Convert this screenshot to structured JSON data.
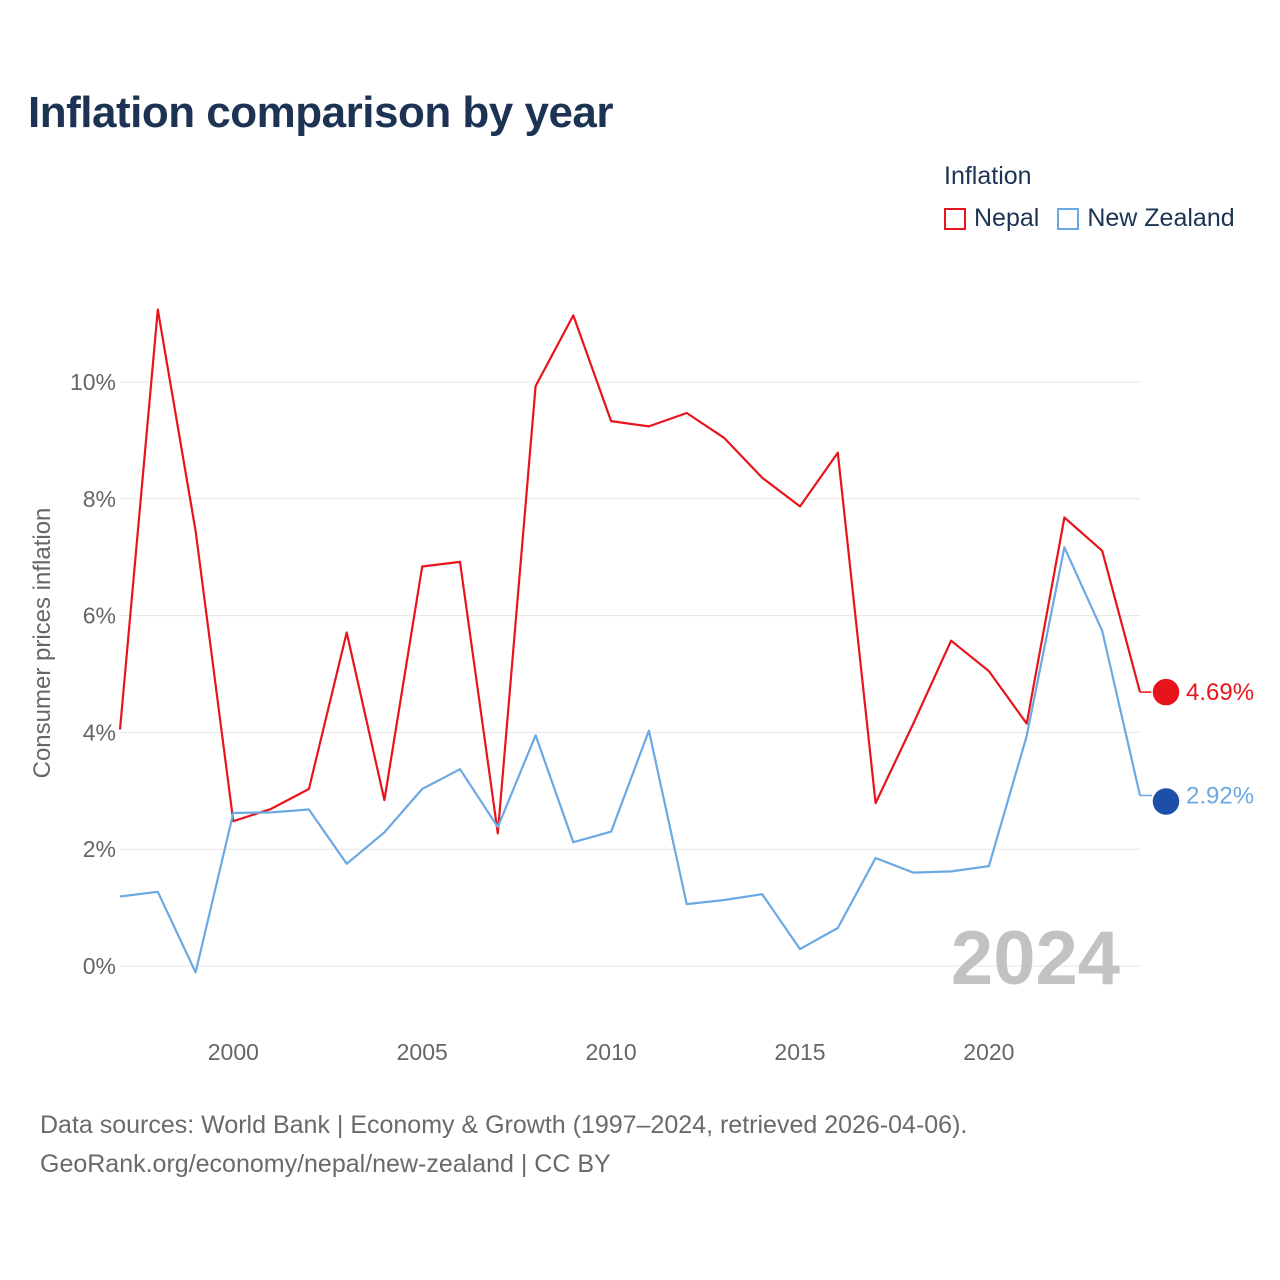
{
  "title": "Inflation comparison by year",
  "legend": {
    "title": "Inflation",
    "items": [
      {
        "label": "Nepal",
        "color": "#e8141b"
      },
      {
        "label": "New Zealand",
        "color": "#6aa9e3"
      }
    ]
  },
  "chart_data": {
    "type": "line",
    "title": "Inflation comparison by year",
    "xlabel": "",
    "ylabel": "Consumer prices inflation",
    "x": [
      1997,
      1998,
      1999,
      2000,
      2001,
      2002,
      2003,
      2004,
      2005,
      2006,
      2007,
      2008,
      2009,
      2010,
      2011,
      2012,
      2013,
      2014,
      2015,
      2016,
      2017,
      2018,
      2019,
      2020,
      2021,
      2022,
      2023,
      2024
    ],
    "xticks": [
      2000,
      2005,
      2010,
      2015,
      2020
    ],
    "yticks": [
      0,
      2,
      4,
      6,
      8,
      10
    ],
    "ytick_labels": [
      "0%",
      "2%",
      "4%",
      "6%",
      "8%",
      "10%"
    ],
    "xlim": [
      1997,
      2024
    ],
    "ylim": [
      -0.8,
      11.5
    ],
    "grid": true,
    "series": [
      {
        "name": "Nepal",
        "color": "#e8141b",
        "end_label": "4.69%",
        "values": [
          4.05,
          11.24,
          7.45,
          2.48,
          2.69,
          3.03,
          5.71,
          2.84,
          6.84,
          6.92,
          2.27,
          9.93,
          11.14,
          9.33,
          9.24,
          9.47,
          9.04,
          8.36,
          7.87,
          8.79,
          2.79,
          4.15,
          5.57,
          5.05,
          4.15,
          7.68,
          7.11,
          4.69
        ]
      },
      {
        "name": "New Zealand",
        "color": "#6aa9e3",
        "end_label": "2.92%",
        "values": [
          1.19,
          1.27,
          -0.11,
          2.62,
          2.63,
          2.68,
          1.75,
          2.29,
          3.03,
          3.37,
          2.38,
          3.95,
          2.12,
          2.3,
          4.03,
          1.06,
          1.13,
          1.23,
          0.29,
          0.65,
          1.85,
          1.6,
          1.62,
          1.71,
          3.94,
          7.17,
          5.74,
          2.92
        ]
      }
    ],
    "year_annotation": "2024"
  },
  "source": {
    "line1": "Data sources: World Bank | Economy & Growth (1997–2024, retrieved 2026-04-06).",
    "line2": "GeoRank.org/economy/nepal/new-zealand | CC BY"
  }
}
